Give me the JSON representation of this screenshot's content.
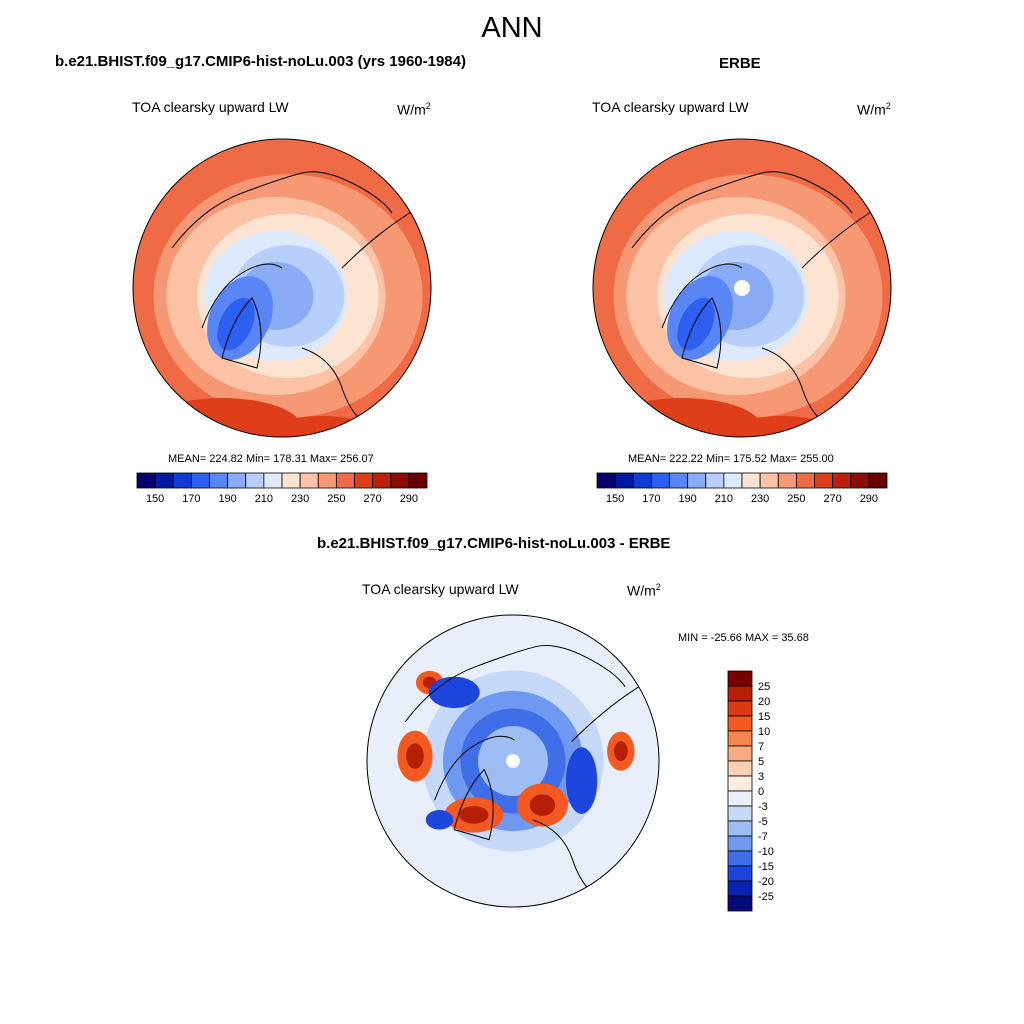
{
  "figure": {
    "title": "ANN"
  },
  "panels": [
    {
      "title": "b.e21.BHIST.f09_g17.CMIP6-hist-noLu.003 (yrs 1960-1984)",
      "variable": "TOA clearsky upward LW",
      "units_base": "W/m",
      "units_exp": "2",
      "stats": "MEAN= 224.82  Min= 178.31  Max= 256.07"
    },
    {
      "title": "ERBE",
      "variable": "TOA clearsky upward LW",
      "units_base": "W/m",
      "units_exp": "2",
      "stats": "MEAN= 222.22  Min= 175.52  Max= 255.00"
    },
    {
      "title": "b.e21.BHIST.f09_g17.CMIP6-hist-noLu.003 - ERBE",
      "variable": "TOA clearsky upward LW",
      "units_base": "W/m",
      "units_exp": "2",
      "stats": "MIN = -25.66 MAX =  35.68"
    }
  ],
  "chart_data": [
    {
      "type": "heatmap",
      "projection": "north-polar-stereographic",
      "title": "b.e21.BHIST.f09_g17.CMIP6-hist-noLu.003 (yrs 1960-1984)",
      "field": "TOA clearsky upward LW",
      "units": "W/m2",
      "mean": 224.82,
      "min": 178.31,
      "max": 256.07,
      "colorbar": {
        "orientation": "horizontal",
        "levels": [
          150,
          160,
          170,
          180,
          190,
          200,
          210,
          220,
          230,
          240,
          250,
          260,
          270,
          280,
          290
        ],
        "tick_labels": [
          "150",
          "170",
          "190",
          "210",
          "230",
          "250",
          "270",
          "290"
        ],
        "colors": [
          "#08006e",
          "#001aa6",
          "#0f3ad6",
          "#2d5ff0",
          "#5a85f5",
          "#8aacf7",
          "#b7cffa",
          "#dde9fc",
          "#fde3d2",
          "#fbc2a5",
          "#f79874",
          "#ef6b45",
          "#df3e1b",
          "#bf200a",
          "#8f0d04",
          "#6a0000"
        ]
      }
    },
    {
      "type": "heatmap",
      "projection": "north-polar-stereographic",
      "title": "ERBE",
      "field": "TOA clearsky upward LW",
      "units": "W/m2",
      "mean": 222.22,
      "min": 175.52,
      "max": 255.0,
      "colorbar": {
        "orientation": "horizontal",
        "levels": [
          150,
          160,
          170,
          180,
          190,
          200,
          210,
          220,
          230,
          240,
          250,
          260,
          270,
          280,
          290
        ],
        "tick_labels": [
          "150",
          "170",
          "190",
          "210",
          "230",
          "250",
          "270",
          "290"
        ],
        "colors": [
          "#08006e",
          "#001aa6",
          "#0f3ad6",
          "#2d5ff0",
          "#5a85f5",
          "#8aacf7",
          "#b7cffa",
          "#dde9fc",
          "#fde3d2",
          "#fbc2a5",
          "#f79874",
          "#ef6b45",
          "#df3e1b",
          "#bf200a",
          "#8f0d04",
          "#6a0000"
        ]
      }
    },
    {
      "type": "heatmap",
      "projection": "north-polar-stereographic",
      "title": "b.e21.BHIST.f09_g17.CMIP6-hist-noLu.003 - ERBE",
      "field": "TOA clearsky upward LW",
      "units": "W/m2",
      "min": -25.66,
      "max": 35.68,
      "colorbar": {
        "orientation": "vertical",
        "tick_labels": [
          "25",
          "20",
          "15",
          "10",
          "7",
          "5",
          "3",
          "0",
          "-3",
          "-5",
          "-7",
          "-10",
          "-15",
          "-20",
          "-25"
        ],
        "colors": [
          "#7a0000",
          "#b51f06",
          "#d93a12",
          "#f25a22",
          "#f7854e",
          "#f9ab80",
          "#fbcfb3",
          "#fdecdf",
          "#e8effb",
          "#c6d8f8",
          "#9ebdf5",
          "#6f98f0",
          "#3f6ee8",
          "#1c46dc",
          "#0a23b4",
          "#050a7c"
        ]
      }
    }
  ]
}
